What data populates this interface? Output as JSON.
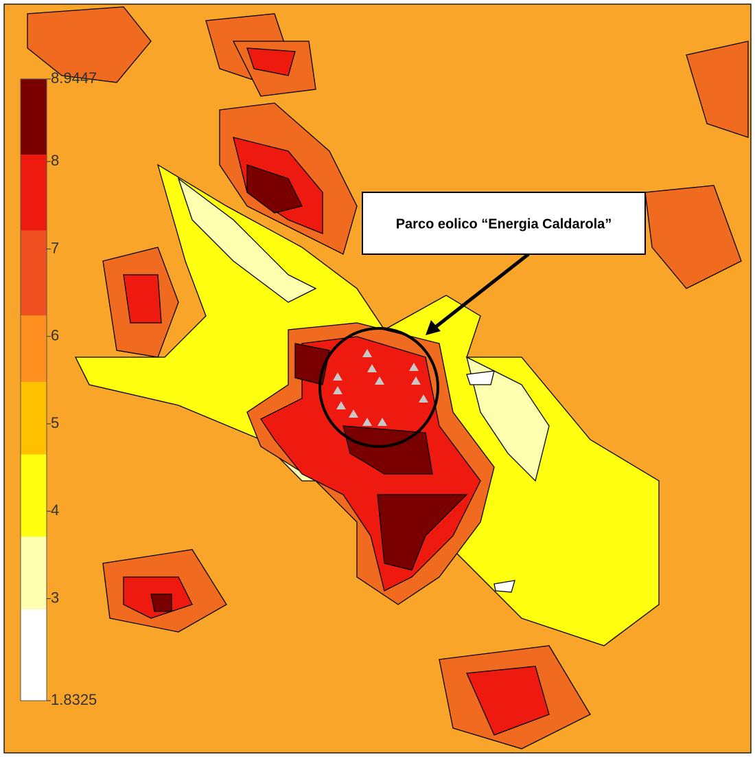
{
  "legend": {
    "min": 1.8325,
    "max": 8.9447,
    "ticks": [
      3,
      4,
      5,
      6,
      7,
      8
    ],
    "levels": [
      1.8325,
      2.88,
      3.71,
      4.65,
      5.48,
      6.24,
      7.21,
      8.08,
      8.9447
    ],
    "colors": [
      "#ffffff",
      "#ffffb0",
      "#ffff10",
      "#ffc000",
      "#ff9020",
      "#f05020",
      "#ee1a10",
      "#7a0000"
    ]
  },
  "annotation": {
    "label": "Parco eolico “Energia Caldarola”"
  }
}
